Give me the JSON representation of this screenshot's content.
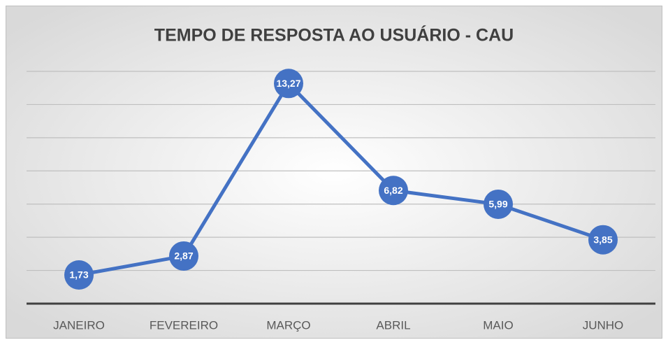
{
  "chart_data": {
    "type": "line",
    "title": "TEMPO DE RESPOSTA AO USUÁRIO - CAU",
    "categories": [
      "JANEIRO",
      "FEVEREIRO",
      "MARÇO",
      "ABRIL",
      "MAIO",
      "JUNHO"
    ],
    "series": [
      {
        "name": "CAU",
        "color": "#4472c4",
        "values": [
          1.73,
          2.87,
          13.27,
          6.82,
          5.99,
          3.85
        ],
        "value_labels": [
          "1,73",
          "2,87",
          "13,27",
          "6,82",
          "5,99",
          "3,85"
        ]
      }
    ],
    "ylim": [
      0,
      14
    ],
    "yticks": [
      0,
      2,
      4,
      6,
      8,
      10,
      12,
      14
    ],
    "grid": true
  }
}
